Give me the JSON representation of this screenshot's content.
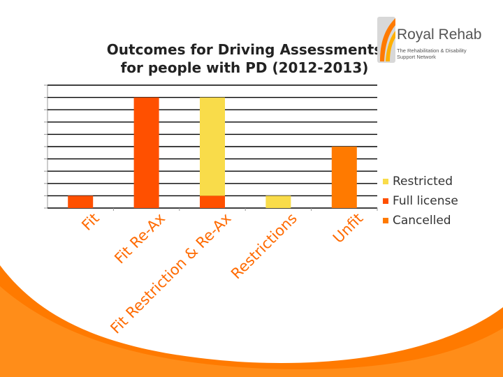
{
  "chart_data": {
    "type": "bar",
    "stacked": true,
    "title": "Outcomes for Driving Assessments for people with PD (2012-2013)",
    "categories": [
      "Fit",
      "Fit Re-Ax",
      "Fit Restriction & Re-Ax",
      "Restrictions",
      "Unfit"
    ],
    "series": [
      {
        "name": "Cancelled",
        "color": "#ff7a00",
        "values": [
          0,
          0,
          0,
          0,
          5
        ]
      },
      {
        "name": "Full license",
        "color": "#ff5000",
        "values": [
          1,
          9,
          1,
          0,
          0
        ]
      },
      {
        "name": "Restricted",
        "color": "#f9dc4a",
        "values": [
          0,
          0,
          8,
          1,
          0
        ]
      }
    ],
    "ylim": [
      0,
      10
    ],
    "grid": true,
    "legend": "right",
    "colors": {
      "gridline": "#000000",
      "accent_orange": "#ff7a00"
    }
  },
  "logo": {
    "name": "Royal Rehab",
    "tagline": "The Rehabilitation & Disability Support Network"
  }
}
